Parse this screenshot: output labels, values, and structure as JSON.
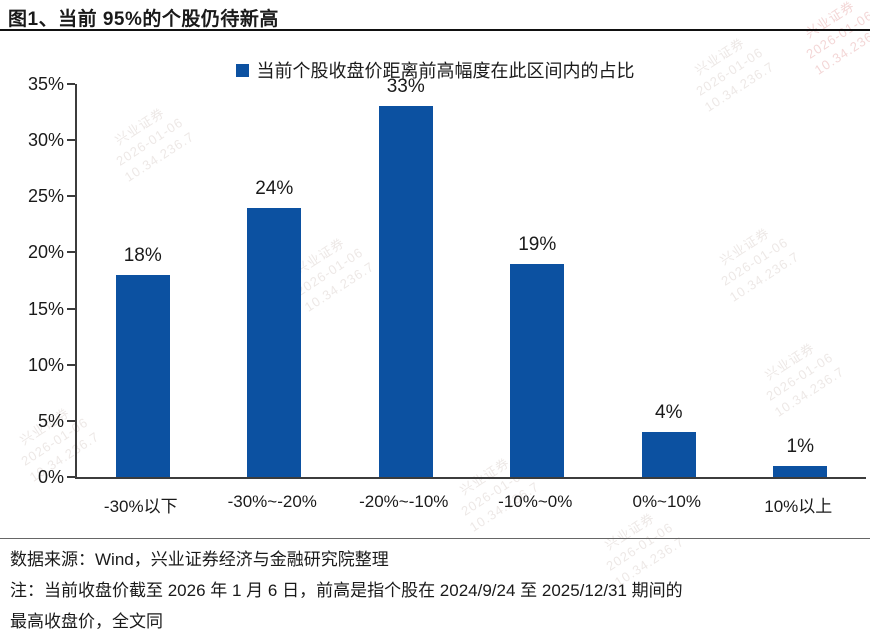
{
  "header": {
    "title": "图1、当前 95%的个股仍待新高"
  },
  "legend": {
    "label": "当前个股收盘价距离前高幅度在此区间内的占比"
  },
  "chart_data": {
    "type": "bar",
    "title": "图1、当前 95%的个股仍待新高",
    "categories": [
      "-30%以下",
      "-30%~-20%",
      "-20%~-10%",
      "-10%~0%",
      "0%~10%",
      "10%以上"
    ],
    "values": [
      18,
      24,
      33,
      19,
      4,
      1
    ],
    "value_labels": [
      "18%",
      "24%",
      "33%",
      "19%",
      "4%",
      "1%"
    ],
    "xlabel": "",
    "ylabel": "",
    "ylim": [
      0,
      35
    ],
    "ytick_step": 5,
    "ytick_labels": [
      "0%",
      "5%",
      "10%",
      "15%",
      "20%",
      "25%",
      "30%",
      "35%"
    ],
    "grid": false,
    "legend": [
      "当前个股收盘价距离前高幅度在此区间内的占比"
    ],
    "legend_position": "top-center",
    "bar_color": "#0C51A1"
  },
  "footer": {
    "source_line": "数据来源：Wind，兴业证券经济与金融研究院整理",
    "note_line1": "注：当前收盘价截至 2026 年 1 月 6 日，前高是指个股在 2024/9/24 至 2025/12/31 期间的",
    "note_line2": "最高收盘价，全文同"
  },
  "watermark": {
    "lines": [
      "兴业证券",
      "2026-01-06",
      "10.34.236.7"
    ]
  },
  "colors": {
    "bar": "#0C51A1",
    "axis": "#3c3c3c",
    "text": "#1a1a1a",
    "title_rule": "#111111",
    "separator": "#666666"
  }
}
